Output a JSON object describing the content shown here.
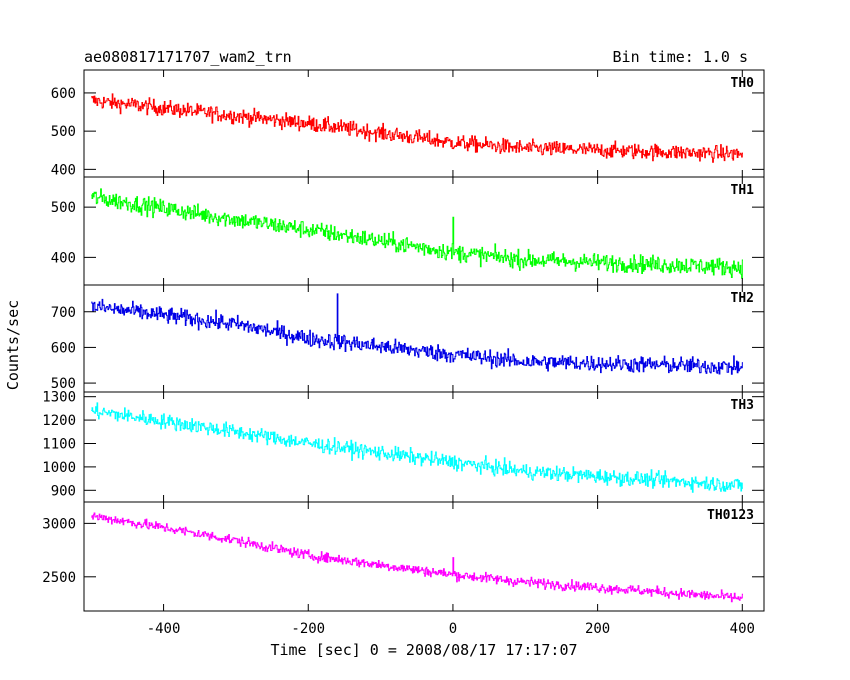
{
  "header": {
    "title": "ae080817171707_wam2_trn",
    "bin_time": "Bin time: 1.0 s"
  },
  "chart_data": {
    "type": "line",
    "title": "ae080817171707_wam2_trn",
    "subtitle": "Bin time: 1.0 s",
    "xlabel": "Time [sec] 0 = 2008/08/17 17:17:07",
    "ylabel": "Counts/sec",
    "xlim": [
      -510,
      430
    ],
    "x_ticks": [
      -400,
      -200,
      0,
      200,
      400
    ],
    "x_tick_labels": [
      "-400",
      "-200",
      "0",
      "200",
      "400"
    ],
    "x_range_data": [
      -500,
      400
    ],
    "bin_time": 1.0,
    "panels": [
      {
        "name": "TH0",
        "color": "#ff0000",
        "ylim": [
          380,
          660
        ],
        "y_ticks": [
          400,
          500,
          600
        ],
        "y_tick_labels": [
          "400",
          "500",
          "600"
        ],
        "trend": [
          [
            -500,
            580
          ],
          [
            -300,
            540
          ],
          [
            -200,
            520
          ],
          [
            0,
            470
          ],
          [
            100,
            455
          ],
          [
            400,
            440
          ]
        ],
        "noise_amplitude": 35,
        "spikes": []
      },
      {
        "name": "TH1",
        "color": "#00ff00",
        "ylim": [
          345,
          560
        ],
        "y_ticks": [
          400,
          500
        ],
        "y_tick_labels": [
          "400",
          "500"
        ],
        "trend": [
          [
            -500,
            520
          ],
          [
            -300,
            475
          ],
          [
            -200,
            455
          ],
          [
            0,
            410
          ],
          [
            100,
            395
          ],
          [
            400,
            380
          ]
        ],
        "noise_amplitude": 30,
        "spikes": [
          [
            0,
            480
          ]
        ]
      },
      {
        "name": "TH2",
        "color": "#0000e6",
        "ylim": [
          475,
          775
        ],
        "y_ticks": [
          500,
          600,
          700
        ],
        "y_tick_labels": [
          "500",
          "600",
          "700"
        ],
        "trend": [
          [
            -500,
            715
          ],
          [
            -300,
            665
          ],
          [
            -200,
            625
          ],
          [
            0,
            580
          ],
          [
            100,
            560
          ],
          [
            400,
            545
          ]
        ],
        "noise_amplitude": 40,
        "spikes": [
          [
            -160,
            750
          ]
        ]
      },
      {
        "name": "TH3",
        "color": "#00ffff",
        "ylim": [
          850,
          1320
        ],
        "y_ticks": [
          900,
          1000,
          1100,
          1200,
          1300
        ],
        "y_tick_labels": [
          "900",
          "1000",
          "1100",
          "1200",
          "1300"
        ],
        "trend": [
          [
            -500,
            1240
          ],
          [
            -300,
            1150
          ],
          [
            -200,
            1100
          ],
          [
            0,
            1020
          ],
          [
            100,
            980
          ],
          [
            400,
            920
          ]
        ],
        "noise_amplitude": 55,
        "spikes": []
      },
      {
        "name": "TH0123",
        "color": "#ff00ff",
        "ylim": [
          2180,
          3200
        ],
        "y_ticks": [
          2500,
          3000
        ],
        "y_tick_labels": [
          "2500",
          "3000"
        ],
        "trend": [
          [
            -500,
            3070
          ],
          [
            -400,
            2960
          ],
          [
            -300,
            2840
          ],
          [
            -200,
            2700
          ],
          [
            0,
            2520
          ],
          [
            100,
            2450
          ],
          [
            400,
            2300
          ]
        ],
        "noise_amplitude": 80,
        "spikes": [
          [
            0,
            2680
          ]
        ]
      }
    ]
  }
}
